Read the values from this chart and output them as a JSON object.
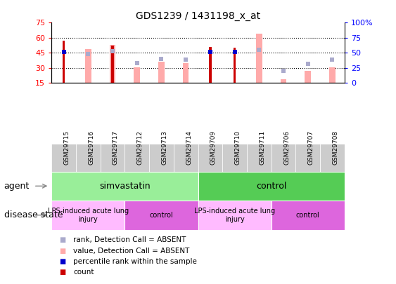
{
  "title": "GDS1239 / 1431198_x_at",
  "samples": [
    "GSM29715",
    "GSM29716",
    "GSM29717",
    "GSM29712",
    "GSM29713",
    "GSM29714",
    "GSM29709",
    "GSM29710",
    "GSM29711",
    "GSM29706",
    "GSM29707",
    "GSM29708"
  ],
  "ylim": [
    15,
    75
  ],
  "yticks_left": [
    15,
    30,
    45,
    60,
    75
  ],
  "yticks_right": [
    0,
    25,
    50,
    75,
    100
  ],
  "count_values": [
    57,
    null,
    52,
    null,
    null,
    null,
    51,
    50,
    null,
    null,
    null,
    null
  ],
  "count_color": "#cc0000",
  "percentile_values": [
    46,
    null,
    null,
    null,
    null,
    null,
    46,
    46,
    null,
    null,
    null,
    null
  ],
  "percentile_color": "#0000cc",
  "bar_values": [
    null,
    49,
    53,
    31,
    36,
    35,
    null,
    null,
    64,
    19,
    27,
    31
  ],
  "bar_color": "#ffaaaa",
  "rank_values": [
    null,
    44,
    47,
    35,
    39,
    38,
    null,
    null,
    48,
    27,
    34,
    38
  ],
  "rank_color": "#aaaacc",
  "agent_groups": [
    {
      "label": "simvastatin",
      "start": 0,
      "end": 6,
      "color": "#aaeea a"
    },
    {
      "label": "control",
      "start": 6,
      "end": 12,
      "color": "#55cc55"
    }
  ],
  "disease_groups": [
    {
      "label": "LPS-induced acute lung\ninjury",
      "start": 0,
      "end": 3,
      "color": "#ffbbff"
    },
    {
      "label": "control",
      "start": 3,
      "end": 6,
      "color": "#dd66dd"
    },
    {
      "label": "LPS-induced acute lung\ninjury",
      "start": 6,
      "end": 9,
      "color": "#ffbbff"
    },
    {
      "label": "control",
      "start": 9,
      "end": 12,
      "color": "#dd66dd"
    }
  ],
  "legend_items": [
    {
      "label": "count",
      "color": "#cc0000"
    },
    {
      "label": "percentile rank within the sample",
      "color": "#0000cc"
    },
    {
      "label": "value, Detection Call = ABSENT",
      "color": "#ffaaaa"
    },
    {
      "label": "rank, Detection Call = ABSENT",
      "color": "#aaaacc"
    }
  ],
  "dotted_lines": [
    30,
    45,
    60
  ],
  "xticklabel_bg": "#cccccc"
}
